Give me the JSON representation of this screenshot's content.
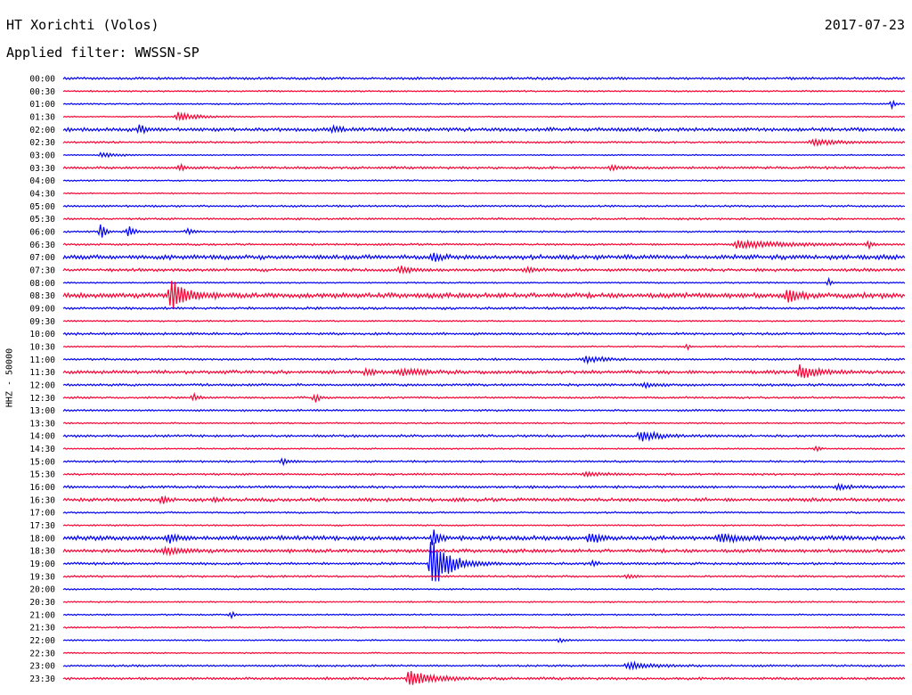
{
  "header": {
    "station": "HT Xorichti (Volos)",
    "date": "2017-07-23",
    "filter": "Applied filter: WWSSN-SP"
  },
  "chart_data": {
    "type": "line",
    "ylabel": "HHZ - 50000",
    "colors": [
      "#0000ff",
      "#ff0033"
    ],
    "rows": [
      "00:00",
      "00:30",
      "01:00",
      "01:30",
      "02:00",
      "02:30",
      "03:00",
      "03:30",
      "04:00",
      "04:30",
      "05:00",
      "05:30",
      "06:00",
      "06:30",
      "07:00",
      "07:30",
      "08:00",
      "08:30",
      "09:00",
      "09:30",
      "10:00",
      "10:30",
      "11:00",
      "11:30",
      "12:00",
      "12:30",
      "13:00",
      "13:30",
      "14:00",
      "14:30",
      "15:00",
      "15:30",
      "16:00",
      "16:30",
      "17:00",
      "17:30",
      "18:00",
      "18:30",
      "19:00",
      "19:30",
      "20:00",
      "20:30",
      "21:00",
      "21:30",
      "22:00",
      "22:30",
      "23:00",
      "23:30"
    ],
    "noise": [
      1.0,
      0.6,
      0.6,
      0.5,
      1.5,
      0.8,
      0.5,
      1.0,
      0.6,
      0.5,
      0.8,
      0.8,
      0.7,
      0.8,
      1.8,
      1.2,
      0.6,
      2.0,
      1.0,
      0.6,
      1.0,
      0.6,
      0.8,
      1.4,
      1.0,
      0.8,
      0.8,
      0.6,
      1.0,
      0.6,
      0.8,
      0.8,
      1.0,
      1.4,
      0.7,
      0.6,
      1.8,
      1.4,
      1.0,
      0.8,
      0.6,
      0.6,
      0.6,
      0.6,
      0.6,
      0.5,
      0.8,
      1.0
    ],
    "events": [
      {
        "row": 2,
        "t": 0.985,
        "amp": 8,
        "dur": 0.002
      },
      {
        "row": 3,
        "t": 0.135,
        "amp": 5,
        "dur": 0.02
      },
      {
        "row": 4,
        "t": 0.09,
        "amp": 5,
        "dur": 0.008
      },
      {
        "row": 4,
        "t": 0.32,
        "amp": 3,
        "dur": 0.01
      },
      {
        "row": 5,
        "t": 0.89,
        "amp": 3,
        "dur": 0.03
      },
      {
        "row": 6,
        "t": 0.045,
        "amp": 3,
        "dur": 0.015
      },
      {
        "row": 7,
        "t": 0.14,
        "amp": 3,
        "dur": 0.005
      },
      {
        "row": 7,
        "t": 0.65,
        "amp": 2.5,
        "dur": 0.01
      },
      {
        "row": 12,
        "t": 0.045,
        "amp": 11,
        "dur": 0.004
      },
      {
        "row": 12,
        "t": 0.078,
        "amp": 7,
        "dur": 0.006
      },
      {
        "row": 12,
        "t": 0.148,
        "amp": 3,
        "dur": 0.006
      },
      {
        "row": 13,
        "t": 0.8,
        "amp": 4,
        "dur": 0.06
      },
      {
        "row": 13,
        "t": 0.957,
        "amp": 5,
        "dur": 0.003
      },
      {
        "row": 14,
        "t": 0.44,
        "amp": 4,
        "dur": 0.01
      },
      {
        "row": 15,
        "t": 0.4,
        "amp": 4,
        "dur": 0.015
      },
      {
        "row": 15,
        "t": 0.55,
        "amp": 3,
        "dur": 0.008
      },
      {
        "row": 16,
        "t": 0.91,
        "amp": 6,
        "dur": 0.002
      },
      {
        "row": 17,
        "t": 0.128,
        "amp": 20,
        "dur": 0.015
      },
      {
        "row": 17,
        "t": 0.86,
        "amp": 8,
        "dur": 0.012
      },
      {
        "row": 21,
        "t": 0.742,
        "amp": 4,
        "dur": 0.002
      },
      {
        "row": 22,
        "t": 0.62,
        "amp": 4,
        "dur": 0.02
      },
      {
        "row": 23,
        "t": 0.36,
        "amp": 4,
        "dur": 0.008
      },
      {
        "row": 23,
        "t": 0.4,
        "amp": 4,
        "dur": 0.02
      },
      {
        "row": 23,
        "t": 0.875,
        "amp": 8,
        "dur": 0.018
      },
      {
        "row": 24,
        "t": 0.69,
        "amp": 3,
        "dur": 0.01
      },
      {
        "row": 25,
        "t": 0.155,
        "amp": 4,
        "dur": 0.006
      },
      {
        "row": 25,
        "t": 0.3,
        "amp": 6,
        "dur": 0.004
      },
      {
        "row": 28,
        "t": 0.685,
        "amp": 6,
        "dur": 0.02
      },
      {
        "row": 29,
        "t": 0.895,
        "amp": 3,
        "dur": 0.004
      },
      {
        "row": 30,
        "t": 0.26,
        "amp": 3,
        "dur": 0.01
      },
      {
        "row": 31,
        "t": 0.62,
        "amp": 2.5,
        "dur": 0.02
      },
      {
        "row": 32,
        "t": 0.92,
        "amp": 3,
        "dur": 0.015
      },
      {
        "row": 33,
        "t": 0.118,
        "amp": 5,
        "dur": 0.005
      },
      {
        "row": 33,
        "t": 0.18,
        "amp": 3,
        "dur": 0.005
      },
      {
        "row": 36,
        "t": 0.125,
        "amp": 5,
        "dur": 0.01
      },
      {
        "row": 36,
        "t": 0.44,
        "amp": 12,
        "dur": 0.006
      },
      {
        "row": 36,
        "t": 0.625,
        "amp": 6,
        "dur": 0.012
      },
      {
        "row": 36,
        "t": 0.78,
        "amp": 4,
        "dur": 0.02
      },
      {
        "row": 37,
        "t": 0.12,
        "amp": 4,
        "dur": 0.02
      },
      {
        "row": 38,
        "t": 0.437,
        "amp": 30,
        "dur": 0.02
      },
      {
        "row": 38,
        "t": 0.63,
        "amp": 4,
        "dur": 0.004
      },
      {
        "row": 39,
        "t": 0.67,
        "amp": 3,
        "dur": 0.006
      },
      {
        "row": 42,
        "t": 0.2,
        "amp": 5,
        "dur": 0.002
      },
      {
        "row": 44,
        "t": 0.59,
        "amp": 2.5,
        "dur": 0.006
      },
      {
        "row": 46,
        "t": 0.67,
        "amp": 4,
        "dur": 0.03
      },
      {
        "row": 47,
        "t": 0.41,
        "amp": 9,
        "dur": 0.025
      }
    ]
  }
}
